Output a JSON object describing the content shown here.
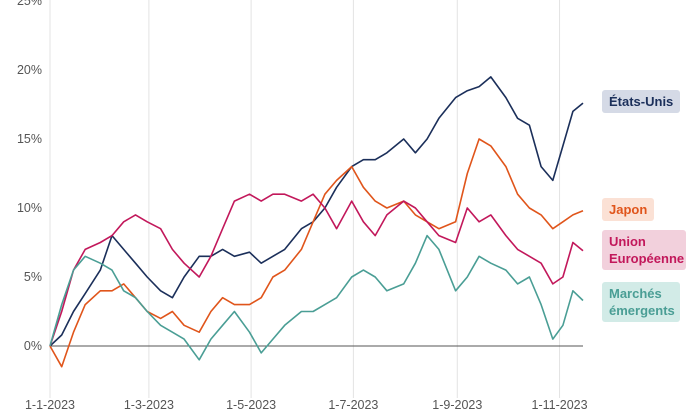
{
  "chart_data": {
    "type": "line",
    "x_range": [
      "2023-01-01",
      "2023-11-15"
    ],
    "ylim": [
      -5,
      25
    ],
    "y_unit": "%",
    "y_ticks": [
      0,
      5,
      10,
      15,
      20,
      25
    ],
    "y_tick_labels": [
      "0%",
      "5%",
      "10%",
      "15%",
      "20%",
      "25%"
    ],
    "x_ticks": [
      "2023-01-01",
      "2023-03-01",
      "2023-05-01",
      "2023-07-01",
      "2023-09-01",
      "2023-11-01"
    ],
    "x_tick_labels": [
      "1-1-2023",
      "1-3-2023",
      "1-5-2023",
      "1-7-2023",
      "1-9-2023",
      "1-11-2023"
    ],
    "grid": "vertical",
    "legend_placement": "right",
    "series": [
      {
        "name": "États-Unis",
        "color": "#1b2f5a",
        "label_bg": "#d5dae6",
        "points": [
          [
            "2023-01-01",
            0
          ],
          [
            "2023-01-08",
            0.8
          ],
          [
            "2023-01-15",
            2.5
          ],
          [
            "2023-01-22",
            3.8
          ],
          [
            "2023-01-31",
            5.5
          ],
          [
            "2023-02-07",
            8.0
          ],
          [
            "2023-02-14",
            7.0
          ],
          [
            "2023-02-21",
            6.0
          ],
          [
            "2023-02-28",
            5.0
          ],
          [
            "2023-03-08",
            4.0
          ],
          [
            "2023-03-15",
            3.5
          ],
          [
            "2023-03-22",
            5.0
          ],
          [
            "2023-03-31",
            6.5
          ],
          [
            "2023-04-07",
            6.5
          ],
          [
            "2023-04-14",
            7.0
          ],
          [
            "2023-04-21",
            6.5
          ],
          [
            "2023-04-30",
            6.8
          ],
          [
            "2023-05-07",
            6.0
          ],
          [
            "2023-05-14",
            6.5
          ],
          [
            "2023-05-21",
            7.0
          ],
          [
            "2023-05-31",
            8.5
          ],
          [
            "2023-06-07",
            9.0
          ],
          [
            "2023-06-14",
            10.0
          ],
          [
            "2023-06-21",
            11.5
          ],
          [
            "2023-06-30",
            13.0
          ],
          [
            "2023-07-07",
            13.5
          ],
          [
            "2023-07-14",
            13.5
          ],
          [
            "2023-07-21",
            14.0
          ],
          [
            "2023-07-31",
            15.0
          ],
          [
            "2023-08-07",
            14.0
          ],
          [
            "2023-08-14",
            15.0
          ],
          [
            "2023-08-21",
            16.5
          ],
          [
            "2023-08-31",
            18.0
          ],
          [
            "2023-09-07",
            18.5
          ],
          [
            "2023-09-14",
            18.8
          ],
          [
            "2023-09-21",
            19.5
          ],
          [
            "2023-09-30",
            18.0
          ],
          [
            "2023-10-07",
            16.5
          ],
          [
            "2023-10-14",
            16.0
          ],
          [
            "2023-10-21",
            13.0
          ],
          [
            "2023-10-28",
            12.0
          ],
          [
            "2023-11-03",
            14.5
          ],
          [
            "2023-11-09",
            17.0
          ],
          [
            "2023-11-15",
            17.6
          ]
        ]
      },
      {
        "name": "Japon",
        "color": "#e0551b",
        "label_bg": "#fbe1d5",
        "points": [
          [
            "2023-01-01",
            0
          ],
          [
            "2023-01-08",
            -1.5
          ],
          [
            "2023-01-15",
            1.0
          ],
          [
            "2023-01-22",
            3.0
          ],
          [
            "2023-01-31",
            4.0
          ],
          [
            "2023-02-07",
            4.0
          ],
          [
            "2023-02-14",
            4.5
          ],
          [
            "2023-02-21",
            3.5
          ],
          [
            "2023-02-28",
            2.5
          ],
          [
            "2023-03-08",
            2.0
          ],
          [
            "2023-03-15",
            2.5
          ],
          [
            "2023-03-22",
            1.5
          ],
          [
            "2023-03-31",
            1.0
          ],
          [
            "2023-04-07",
            2.5
          ],
          [
            "2023-04-14",
            3.5
          ],
          [
            "2023-04-21",
            3.0
          ],
          [
            "2023-04-30",
            3.0
          ],
          [
            "2023-05-07",
            3.5
          ],
          [
            "2023-05-14",
            5.0
          ],
          [
            "2023-05-21",
            5.5
          ],
          [
            "2023-05-31",
            7.0
          ],
          [
            "2023-06-07",
            9.0
          ],
          [
            "2023-06-14",
            11.0
          ],
          [
            "2023-06-21",
            12.0
          ],
          [
            "2023-06-30",
            13.0
          ],
          [
            "2023-07-07",
            11.5
          ],
          [
            "2023-07-14",
            10.5
          ],
          [
            "2023-07-21",
            10.0
          ],
          [
            "2023-07-31",
            10.5
          ],
          [
            "2023-08-07",
            9.5
          ],
          [
            "2023-08-14",
            9.0
          ],
          [
            "2023-08-21",
            8.5
          ],
          [
            "2023-08-31",
            9.0
          ],
          [
            "2023-09-07",
            12.5
          ],
          [
            "2023-09-14",
            15.0
          ],
          [
            "2023-09-21",
            14.5
          ],
          [
            "2023-09-30",
            13.0
          ],
          [
            "2023-10-07",
            11.0
          ],
          [
            "2023-10-14",
            10.0
          ],
          [
            "2023-10-21",
            9.5
          ],
          [
            "2023-10-28",
            8.5
          ],
          [
            "2023-11-03",
            9.0
          ],
          [
            "2023-11-09",
            9.5
          ],
          [
            "2023-11-15",
            9.8
          ]
        ]
      },
      {
        "name": "Union Européenne",
        "color": "#c2185b",
        "label_bg": "#f2d0dc",
        "points": [
          [
            "2023-01-01",
            0
          ],
          [
            "2023-01-08",
            2.5
          ],
          [
            "2023-01-15",
            5.5
          ],
          [
            "2023-01-22",
            7.0
          ],
          [
            "2023-01-31",
            7.5
          ],
          [
            "2023-02-07",
            8.0
          ],
          [
            "2023-02-14",
            9.0
          ],
          [
            "2023-02-21",
            9.5
          ],
          [
            "2023-02-28",
            9.0
          ],
          [
            "2023-03-08",
            8.5
          ],
          [
            "2023-03-15",
            7.0
          ],
          [
            "2023-03-22",
            6.0
          ],
          [
            "2023-03-31",
            5.0
          ],
          [
            "2023-04-07",
            6.5
          ],
          [
            "2023-04-14",
            8.5
          ],
          [
            "2023-04-21",
            10.5
          ],
          [
            "2023-04-30",
            11.0
          ],
          [
            "2023-05-07",
            10.5
          ],
          [
            "2023-05-14",
            11.0
          ],
          [
            "2023-05-21",
            11.0
          ],
          [
            "2023-05-31",
            10.5
          ],
          [
            "2023-06-07",
            11.0
          ],
          [
            "2023-06-14",
            10.0
          ],
          [
            "2023-06-21",
            8.5
          ],
          [
            "2023-06-30",
            10.5
          ],
          [
            "2023-07-07",
            9.0
          ],
          [
            "2023-07-14",
            8.0
          ],
          [
            "2023-07-21",
            9.5
          ],
          [
            "2023-07-31",
            10.5
          ],
          [
            "2023-08-07",
            10.0
          ],
          [
            "2023-08-14",
            9.0
          ],
          [
            "2023-08-21",
            8.0
          ],
          [
            "2023-08-31",
            7.5
          ],
          [
            "2023-09-07",
            10.0
          ],
          [
            "2023-09-14",
            9.0
          ],
          [
            "2023-09-21",
            9.5
          ],
          [
            "2023-09-30",
            8.0
          ],
          [
            "2023-10-07",
            7.0
          ],
          [
            "2023-10-14",
            6.5
          ],
          [
            "2023-10-21",
            6.0
          ],
          [
            "2023-10-28",
            4.5
          ],
          [
            "2023-11-03",
            5.0
          ],
          [
            "2023-11-09",
            7.5
          ],
          [
            "2023-11-15",
            6.9
          ]
        ]
      },
      {
        "name": "Marchés émergents",
        "color": "#4a9e95",
        "label_bg": "#d2ebe7",
        "points": [
          [
            "2023-01-01",
            0
          ],
          [
            "2023-01-08",
            3.0
          ],
          [
            "2023-01-15",
            5.5
          ],
          [
            "2023-01-22",
            6.5
          ],
          [
            "2023-01-31",
            6.0
          ],
          [
            "2023-02-07",
            5.5
          ],
          [
            "2023-02-14",
            4.0
          ],
          [
            "2023-02-21",
            3.5
          ],
          [
            "2023-02-28",
            2.5
          ],
          [
            "2023-03-08",
            1.5
          ],
          [
            "2023-03-15",
            1.0
          ],
          [
            "2023-03-22",
            0.5
          ],
          [
            "2023-03-31",
            -1.0
          ],
          [
            "2023-04-07",
            0.5
          ],
          [
            "2023-04-14",
            1.5
          ],
          [
            "2023-04-21",
            2.5
          ],
          [
            "2023-04-30",
            1.0
          ],
          [
            "2023-05-07",
            -0.5
          ],
          [
            "2023-05-14",
            0.5
          ],
          [
            "2023-05-21",
            1.5
          ],
          [
            "2023-05-31",
            2.5
          ],
          [
            "2023-06-07",
            2.5
          ],
          [
            "2023-06-14",
            3.0
          ],
          [
            "2023-06-21",
            3.5
          ],
          [
            "2023-06-30",
            5.0
          ],
          [
            "2023-07-07",
            5.5
          ],
          [
            "2023-07-14",
            5.0
          ],
          [
            "2023-07-21",
            4.0
          ],
          [
            "2023-07-31",
            4.5
          ],
          [
            "2023-08-07",
            6.0
          ],
          [
            "2023-08-14",
            8.0
          ],
          [
            "2023-08-21",
            7.0
          ],
          [
            "2023-08-31",
            4.0
          ],
          [
            "2023-09-07",
            5.0
          ],
          [
            "2023-09-14",
            6.5
          ],
          [
            "2023-09-21",
            6.0
          ],
          [
            "2023-09-30",
            5.5
          ],
          [
            "2023-10-07",
            4.5
          ],
          [
            "2023-10-14",
            5.0
          ],
          [
            "2023-10-21",
            3.0
          ],
          [
            "2023-10-28",
            0.5
          ],
          [
            "2023-11-03",
            1.5
          ],
          [
            "2023-11-09",
            4.0
          ],
          [
            "2023-11-15",
            3.3
          ]
        ]
      }
    ]
  }
}
